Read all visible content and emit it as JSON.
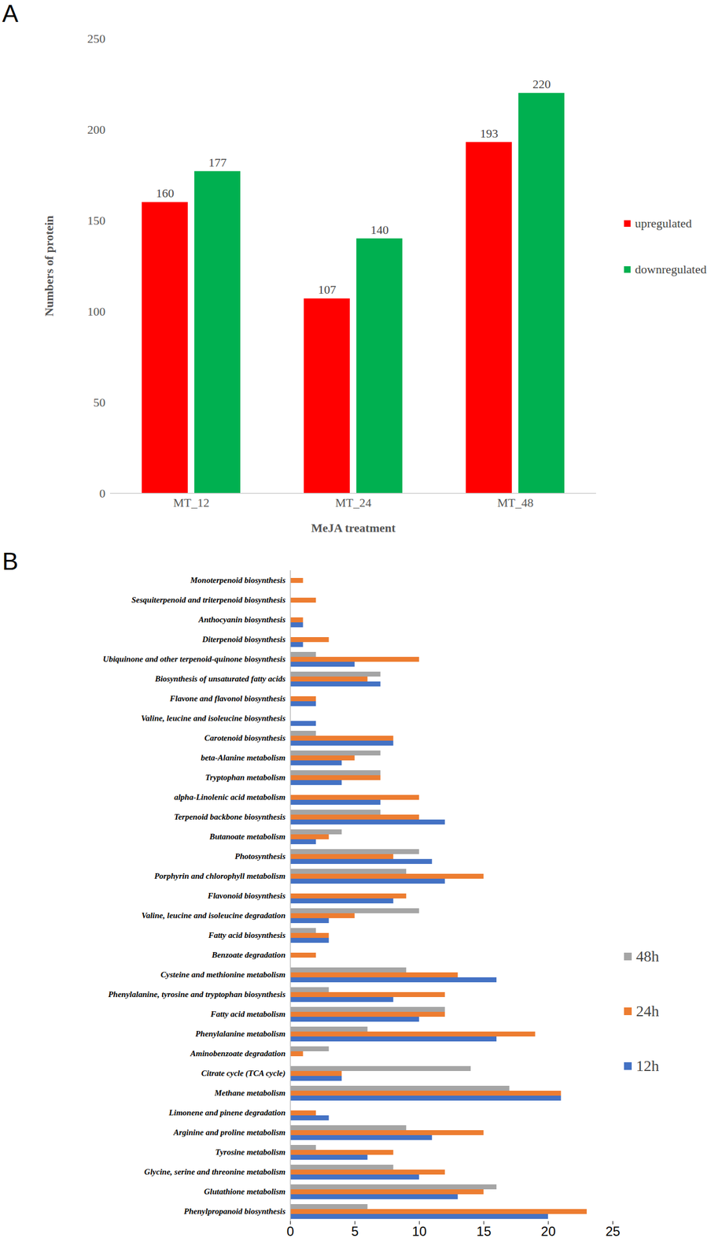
{
  "chart_data": [
    {
      "type": "bar",
      "annotations": [
        "A"
      ],
      "categories": [
        "MT_12",
        "MT_24",
        "MT_48"
      ],
      "series": [
        {
          "name": "upregulated",
          "color": "#ff0000",
          "values": [
            160,
            107,
            193
          ]
        },
        {
          "name": "downregulated",
          "color": "#00b050",
          "values": [
            177,
            140,
            220
          ]
        }
      ],
      "x_label": "MeJA treatment",
      "y_label": "Numbers of protein",
      "ylim": [
        0,
        250
      ],
      "yticks": [
        0,
        50,
        100,
        150,
        200,
        250
      ],
      "data_labels": true,
      "legend": "right",
      "grid": false
    },
    {
      "type": "bar",
      "orientation": "horizontal",
      "annotations": [
        "B"
      ],
      "categories": [
        "Monoterpenoid biosynthesis",
        "Sesquiterpenoid and triterpenoid biosynthesis",
        "Anthocyanin biosynthesis",
        "Diterpenoid biosynthesis",
        "Ubiquinone and other terpenoid-quinone biosynthesis",
        "Biosynthesis of unsaturated fatty acids",
        "Flavone and flavonol biosynthesis",
        "Valine, leucine and isoleucine biosynthesis",
        "Carotenoid biosynthesis",
        "beta-Alanine metabolism",
        "Tryptophan metabolism",
        "alpha-Linolenic acid metabolism",
        "Terpenoid backbone biosynthesis",
        "Butanoate metabolism",
        "Photosynthesis",
        "Porphyrin and chlorophyll metabolism",
        "Flavonoid biosynthesis",
        "Valine, leucine and isoleucine degradation",
        "Fatty acid biosynthesis",
        "Benzoate degradation",
        "Cysteine and methionine metabolism",
        "Phenylalanine, tyrosine and tryptophan biosynthesis",
        "Fatty acid metabolism",
        "Phenylalanine metabolism",
        "Aminobenzoate degradation",
        "Citrate cycle (TCA cycle)",
        "Methane metabolism",
        "Limonene and pinene degradation",
        "Arginine and proline metabolism",
        "Tyrosine metabolism",
        "Glycine, serine and threonine metabolism",
        "Glutathione metabolism",
        "Phenylpropanoid biosynthesis"
      ],
      "series": [
        {
          "name": "48h",
          "color": "#a5a5a5",
          "values": [
            0,
            0,
            0,
            0,
            2,
            7,
            0,
            0,
            2,
            7,
            7,
            0,
            7,
            4,
            10,
            9,
            0,
            10,
            2,
            0,
            9,
            3,
            12,
            6,
            3,
            14,
            17,
            0,
            9,
            2,
            8,
            16,
            6
          ]
        },
        {
          "name": "24h",
          "color": "#ed7d31",
          "values": [
            1,
            2,
            1,
            3,
            10,
            6,
            2,
            0,
            8,
            5,
            7,
            10,
            10,
            3,
            8,
            15,
            9,
            5,
            3,
            2,
            13,
            12,
            12,
            19,
            1,
            4,
            21,
            2,
            15,
            8,
            12,
            15,
            23
          ]
        },
        {
          "name": "12h",
          "color": "#4472c4",
          "values": [
            0,
            0,
            1,
            1,
            5,
            7,
            2,
            2,
            8,
            4,
            4,
            7,
            12,
            2,
            11,
            12,
            8,
            3,
            3,
            0,
            16,
            8,
            10,
            16,
            0,
            4,
            21,
            3,
            11,
            6,
            10,
            13,
            20
          ]
        }
      ],
      "xlim": [
        0,
        25
      ],
      "xticks": [
        0,
        5,
        10,
        15,
        20,
        25
      ],
      "legend": "right",
      "grid": false
    }
  ]
}
